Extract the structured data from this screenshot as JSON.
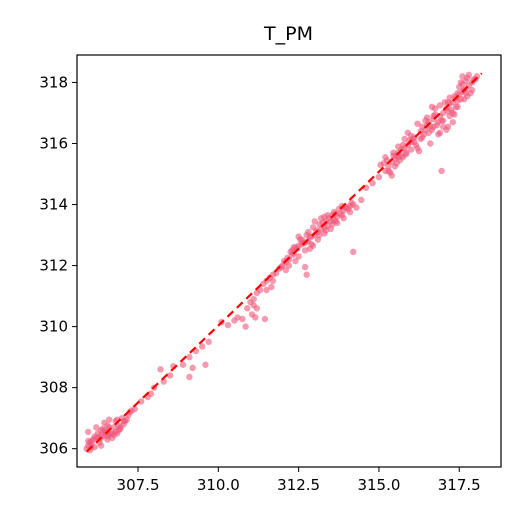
{
  "chart_data": {
    "type": "scatter",
    "title": "T_PM",
    "xlabel": "",
    "ylabel": "",
    "xlim": [
      305.6,
      318.8
    ],
    "ylim": [
      305.4,
      318.9
    ],
    "xticks": [
      307.5,
      310.0,
      312.5,
      315.0,
      317.5
    ],
    "xtick_labels": [
      "307.5",
      "310.0",
      "312.5",
      "315.0",
      "317.5"
    ],
    "yticks": [
      306,
      308,
      310,
      312,
      314,
      316,
      318
    ],
    "ytick_labels": [
      "306",
      "308",
      "310",
      "312",
      "314",
      "316",
      "318"
    ],
    "grid": false,
    "point_color": "#f0567a",
    "reference_line": {
      "style": "dashed",
      "color": "#ff0000",
      "x": [
        305.9,
        318.2
      ],
      "y": [
        305.9,
        318.3
      ]
    },
    "points": [
      [
        305.9,
        306.0
      ],
      [
        305.95,
        306.1
      ],
      [
        306.0,
        306.2
      ],
      [
        306.05,
        306.15
      ],
      [
        306.1,
        306.3
      ],
      [
        306.2,
        306.35
      ],
      [
        306.3,
        306.3
      ],
      [
        306.35,
        306.45
      ],
      [
        306.4,
        306.4
      ],
      [
        306.5,
        306.5
      ],
      [
        306.6,
        306.45
      ],
      [
        306.7,
        306.5
      ],
      [
        306.8,
        306.55
      ],
      [
        306.9,
        306.6
      ],
      [
        306.95,
        306.7
      ],
      [
        307.05,
        306.8
      ],
      [
        307.1,
        306.9
      ],
      [
        307.15,
        306.95
      ],
      [
        307.2,
        307.1
      ],
      [
        307.25,
        307.2
      ],
      [
        305.95,
        306.55
      ],
      [
        306.2,
        306.7
      ],
      [
        306.4,
        306.65
      ],
      [
        306.55,
        306.75
      ],
      [
        306.6,
        306.95
      ],
      [
        306.45,
        306.85
      ],
      [
        306.8,
        306.9
      ],
      [
        307.0,
        307.0
      ],
      [
        306.3,
        306.2
      ],
      [
        306.0,
        305.95
      ],
      [
        306.15,
        306.05
      ],
      [
        306.7,
        306.35
      ],
      [
        306.85,
        306.5
      ],
      [
        307.3,
        307.25
      ],
      [
        307.4,
        307.3
      ],
      [
        307.6,
        307.55
      ],
      [
        307.9,
        307.8
      ],
      [
        308.0,
        308.0
      ],
      [
        308.3,
        308.2
      ],
      [
        308.5,
        308.4
      ],
      [
        308.6,
        308.7
      ],
      [
        308.9,
        308.75
      ],
      [
        309.1,
        309.0
      ],
      [
        309.3,
        309.2
      ],
      [
        309.5,
        309.35
      ],
      [
        309.7,
        309.5
      ],
      [
        309.2,
        308.65
      ],
      [
        309.1,
        308.35
      ],
      [
        309.6,
        308.75
      ],
      [
        308.2,
        308.6
      ],
      [
        307.8,
        307.7
      ],
      [
        310.1,
        310.15
      ],
      [
        310.3,
        310.05
      ],
      [
        310.5,
        310.2
      ],
      [
        310.6,
        310.3
      ],
      [
        310.9,
        310.6
      ],
      [
        311.0,
        310.8
      ],
      [
        311.1,
        310.9
      ],
      [
        311.2,
        311.1
      ],
      [
        311.3,
        311.2
      ],
      [
        311.4,
        311.4
      ],
      [
        311.5,
        311.5
      ],
      [
        311.6,
        311.6
      ],
      [
        311.7,
        311.7
      ],
      [
        311.8,
        311.75
      ],
      [
        311.9,
        311.9
      ],
      [
        312.0,
        312.0
      ],
      [
        312.1,
        312.1
      ],
      [
        312.2,
        312.2
      ],
      [
        312.3,
        312.35
      ],
      [
        312.35,
        312.4
      ],
      [
        311.05,
        310.4
      ],
      [
        311.15,
        310.3
      ],
      [
        311.45,
        310.25
      ],
      [
        310.85,
        310.0
      ],
      [
        311.2,
        310.6
      ],
      [
        311.1,
        310.7
      ],
      [
        311.5,
        311.2
      ],
      [
        311.65,
        311.3
      ],
      [
        311.7,
        311.5
      ],
      [
        310.75,
        310.25
      ],
      [
        312.3,
        312.5
      ],
      [
        312.4,
        312.6
      ],
      [
        312.5,
        312.65
      ],
      [
        312.6,
        312.7
      ],
      [
        312.7,
        312.75
      ],
      [
        312.8,
        312.8
      ],
      [
        312.9,
        312.95
      ],
      [
        313.0,
        313.0
      ],
      [
        313.1,
        313.1
      ],
      [
        313.2,
        313.2
      ],
      [
        313.3,
        313.25
      ],
      [
        313.4,
        313.3
      ],
      [
        313.5,
        313.45
      ],
      [
        313.6,
        313.5
      ],
      [
        313.7,
        313.6
      ],
      [
        313.8,
        313.7
      ],
      [
        313.9,
        313.8
      ],
      [
        314.0,
        313.9
      ],
      [
        314.1,
        313.95
      ],
      [
        314.2,
        314.0
      ],
      [
        312.5,
        312.3
      ],
      [
        312.7,
        312.5
      ],
      [
        312.9,
        312.7
      ],
      [
        313.1,
        312.85
      ],
      [
        313.3,
        313.05
      ],
      [
        313.5,
        313.2
      ],
      [
        313.2,
        313.55
      ],
      [
        313.0,
        313.45
      ],
      [
        312.8,
        313.1
      ],
      [
        313.6,
        313.75
      ],
      [
        313.4,
        313.65
      ],
      [
        312.6,
        312.85
      ],
      [
        312.2,
        312.0
      ],
      [
        312.1,
        311.85
      ],
      [
        312.4,
        312.15
      ],
      [
        313.7,
        313.4
      ],
      [
        313.9,
        313.55
      ],
      [
        314.1,
        313.75
      ],
      [
        312.7,
        311.95
      ],
      [
        313.3,
        313.6
      ],
      [
        312.5,
        312.95
      ],
      [
        314.2,
        312.45
      ],
      [
        314.3,
        313.9
      ],
      [
        314.45,
        314.15
      ],
      [
        314.6,
        314.55
      ],
      [
        314.8,
        314.7
      ],
      [
        315.0,
        314.9
      ],
      [
        312.75,
        311.7
      ],
      [
        315.2,
        315.1
      ],
      [
        315.3,
        315.25
      ],
      [
        315.4,
        315.4
      ],
      [
        315.5,
        315.5
      ],
      [
        315.55,
        315.6
      ],
      [
        315.6,
        315.7
      ],
      [
        315.7,
        315.8
      ],
      [
        315.8,
        315.85
      ],
      [
        315.9,
        315.95
      ],
      [
        316.0,
        316.05
      ],
      [
        315.35,
        315.05
      ],
      [
        315.5,
        315.25
      ],
      [
        315.65,
        315.45
      ],
      [
        315.75,
        315.55
      ],
      [
        315.85,
        315.7
      ],
      [
        315.45,
        315.6
      ],
      [
        315.6,
        315.9
      ],
      [
        315.8,
        316.15
      ],
      [
        315.9,
        316.35
      ],
      [
        316.0,
        316.25
      ],
      [
        316.1,
        316.2
      ],
      [
        316.3,
        316.4
      ],
      [
        316.5,
        316.6
      ],
      [
        316.6,
        316.55
      ],
      [
        316.7,
        316.8
      ],
      [
        316.9,
        316.9
      ],
      [
        316.2,
        316.65
      ],
      [
        316.4,
        316.3
      ],
      [
        316.7,
        316.55
      ],
      [
        316.85,
        316.7
      ],
      [
        315.2,
        315.55
      ],
      [
        316.1,
        316.05
      ],
      [
        316.3,
        316.15
      ],
      [
        315.4,
        314.95
      ],
      [
        317.0,
        317.0
      ],
      [
        317.1,
        317.15
      ],
      [
        317.2,
        317.3
      ],
      [
        317.3,
        317.35
      ],
      [
        317.4,
        317.5
      ],
      [
        317.5,
        317.6
      ],
      [
        317.6,
        317.7
      ],
      [
        317.7,
        317.8
      ],
      [
        317.8,
        317.9
      ],
      [
        317.9,
        318.0
      ],
      [
        317.5,
        317.85
      ],
      [
        317.6,
        317.95
      ],
      [
        317.7,
        318.05
      ],
      [
        317.75,
        318.15
      ],
      [
        317.8,
        318.25
      ],
      [
        317.9,
        317.75
      ],
      [
        318.0,
        318.1
      ],
      [
        317.55,
        317.45
      ],
      [
        317.65,
        317.75
      ],
      [
        317.85,
        317.65
      ],
      [
        317.3,
        316.7
      ],
      [
        317.2,
        316.9
      ],
      [
        317.15,
        317.05
      ],
      [
        318.05,
        318.2
      ],
      [
        317.45,
        317.2
      ],
      [
        317.0,
        316.75
      ],
      [
        316.6,
        316.0
      ],
      [
        316.85,
        316.3
      ],
      [
        317.15,
        316.55
      ],
      [
        317.25,
        317.1
      ],
      [
        316.95,
        315.1
      ],
      [
        317.2,
        317.5
      ],
      [
        317.7,
        317.65
      ],
      [
        316.75,
        317.15
      ],
      [
        316.7,
        316.9
      ],
      [
        317.45,
        317.65
      ],
      [
        317.95,
        318.1
      ],
      [
        317.35,
        316.95
      ],
      [
        317.55,
        318.0
      ],
      [
        316.55,
        316.7
      ],
      [
        315.7,
        315.6
      ],
      [
        315.3,
        315.1
      ],
      [
        316.15,
        315.95
      ],
      [
        316.35,
        316.55
      ],
      [
        317.0,
        316.55
      ],
      [
        316.9,
        317.25
      ],
      [
        317.1,
        316.45
      ],
      [
        317.6,
        318.2
      ],
      [
        317.75,
        317.55
      ],
      [
        316.05,
        316.15
      ],
      [
        316.45,
        316.45
      ],
      [
        315.55,
        315.35
      ],
      [
        315.15,
        315.35
      ],
      [
        316.8,
        316.6
      ],
      [
        316.65,
        317.2
      ],
      [
        317.45,
        317.4
      ],
      [
        317.3,
        317.0
      ],
      [
        316.25,
        315.75
      ],
      [
        315.95,
        316.1
      ],
      [
        316.75,
        316.95
      ],
      [
        315.05,
        315.3
      ],
      [
        317.35,
        317.55
      ],
      [
        316.9,
        316.35
      ],
      [
        317.15,
        317.35
      ],
      [
        315.85,
        315.65
      ],
      [
        316.5,
        316.85
      ],
      [
        316.0,
        315.8
      ],
      [
        317.05,
        317.35
      ],
      [
        315.75,
        315.95
      ],
      [
        316.55,
        316.35
      ],
      [
        316.65,
        316.45
      ],
      [
        317.65,
        317.45
      ],
      [
        317.4,
        317.2
      ],
      [
        316.2,
        315.85
      ],
      [
        315.25,
        315.45
      ],
      [
        316.35,
        316.2
      ],
      [
        316.45,
        316.75
      ],
      [
        315.6,
        315.55
      ],
      [
        316.95,
        316.75
      ],
      [
        315.45,
        315.7
      ],
      [
        313.95,
        313.9
      ],
      [
        314.05,
        313.85
      ],
      [
        313.85,
        313.65
      ],
      [
        313.65,
        313.45
      ],
      [
        313.55,
        313.65
      ],
      [
        313.35,
        313.45
      ],
      [
        313.15,
        313.35
      ],
      [
        312.95,
        313.25
      ],
      [
        312.85,
        312.95
      ],
      [
        312.65,
        312.75
      ],
      [
        312.45,
        312.55
      ],
      [
        312.25,
        312.45
      ],
      [
        312.15,
        312.25
      ],
      [
        312.05,
        312.15
      ],
      [
        311.95,
        311.95
      ],
      [
        312.75,
        313.0
      ],
      [
        312.55,
        312.85
      ],
      [
        313.05,
        313.15
      ],
      [
        313.25,
        313.4
      ],
      [
        313.45,
        313.55
      ],
      [
        313.75,
        313.85
      ],
      [
        313.65,
        313.7
      ],
      [
        314.15,
        314.05
      ],
      [
        313.85,
        313.95
      ],
      [
        313.15,
        313.0
      ],
      [
        312.35,
        312.6
      ],
      [
        312.95,
        312.65
      ],
      [
        313.35,
        313.15
      ],
      [
        312.85,
        312.55
      ],
      [
        313.55,
        313.35
      ],
      [
        306.25,
        306.35
      ],
      [
        306.55,
        306.3
      ],
      [
        306.65,
        306.5
      ],
      [
        306.95,
        306.65
      ],
      [
        306.75,
        306.7
      ],
      [
        306.05,
        306.25
      ],
      [
        306.35,
        306.6
      ],
      [
        306.5,
        306.55
      ],
      [
        306.9,
        306.75
      ],
      [
        306.15,
        306.4
      ],
      [
        306.45,
        306.6
      ],
      [
        306.75,
        306.45
      ],
      [
        307.05,
        306.9
      ],
      [
        306.85,
        306.95
      ],
      [
        306.6,
        306.7
      ],
      [
        306.25,
        306.5
      ],
      [
        306.05,
        306.05
      ],
      [
        305.95,
        306.25
      ],
      [
        306.35,
        306.1
      ],
      [
        306.55,
        306.4
      ]
    ]
  }
}
